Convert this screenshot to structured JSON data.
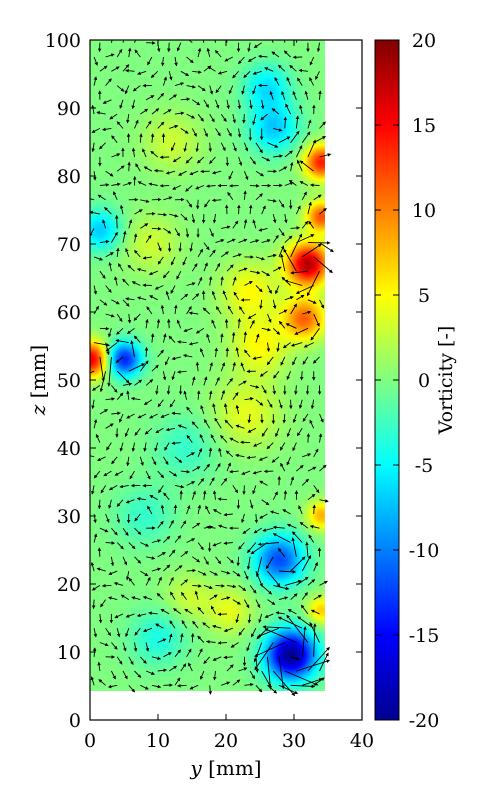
{
  "chart_data": {
    "type": "heatmap",
    "subtype": "vorticity field with velocity vector overlay",
    "xlabel_var": "y",
    "xlabel_unit": "[mm]",
    "ylabel_var": "z",
    "ylabel_unit": "[mm]",
    "xlim": [
      0,
      40
    ],
    "ylim": [
      0,
      100
    ],
    "x_ticks": [
      "0",
      "10",
      "20",
      "30",
      "40"
    ],
    "y_ticks": [
      "0",
      "10",
      "20",
      "30",
      "40",
      "50",
      "60",
      "70",
      "80",
      "90",
      "100"
    ],
    "data_extent": {
      "y": [
        0,
        34.5
      ],
      "z": [
        4.2,
        100
      ]
    },
    "colorbar": {
      "label": "Vorticity [-]",
      "range": [
        -20,
        20
      ],
      "ticks": [
        "20",
        "15",
        "10",
        "5",
        "0",
        "-5",
        "-10",
        "-15",
        "-20"
      ],
      "colormap": "jet"
    },
    "vortices": [
      {
        "y": 29.5,
        "z": 9.5,
        "vorticity": -20,
        "sigma": 2.6
      },
      {
        "y": 27.8,
        "z": 23.5,
        "vorticity": -12,
        "sigma": 2.6
      },
      {
        "y": 5.0,
        "z": 53.0,
        "vorticity": -14,
        "sigma": 1.8
      },
      {
        "y": 0.2,
        "z": 53.0,
        "vorticity": 16,
        "sigma": 1.8
      },
      {
        "y": 32.0,
        "z": 67.0,
        "vorticity": 18,
        "sigma": 2.2
      },
      {
        "y": 34.0,
        "z": 82.0,
        "vorticity": 14,
        "sigma": 1.8
      },
      {
        "y": 34.0,
        "z": 74.0,
        "vorticity": 12,
        "sigma": 1.6
      },
      {
        "y": 31.5,
        "z": 59.0,
        "vorticity": 11,
        "sigma": 2.2
      },
      {
        "y": 27.0,
        "z": 87.0,
        "vorticity": -7,
        "sigma": 2.6
      },
      {
        "y": 26.0,
        "z": 93.0,
        "vorticity": -6,
        "sigma": 2.4
      },
      {
        "y": 25.0,
        "z": 55.0,
        "vorticity": 5,
        "sigma": 3.0
      },
      {
        "y": 23.0,
        "z": 45.0,
        "vorticity": 4,
        "sigma": 3.5
      },
      {
        "y": 23.5,
        "z": 63.0,
        "vorticity": 5,
        "sigma": 3.0
      },
      {
        "y": 1.5,
        "z": 72.0,
        "vorticity": -7,
        "sigma": 2.2
      },
      {
        "y": 34.0,
        "z": 30.0,
        "vorticity": 8,
        "sigma": 1.5
      },
      {
        "y": 34.0,
        "z": 16.0,
        "vorticity": 7,
        "sigma": 1.5
      },
      {
        "y": 20.5,
        "z": 16.0,
        "vorticity": 4,
        "sigma": 2.4
      },
      {
        "y": 10.0,
        "z": 12.0,
        "vorticity": -4,
        "sigma": 2.8
      },
      {
        "y": 14.0,
        "z": 40.0,
        "vorticity": -3,
        "sigma": 3.2
      },
      {
        "y": 9.0,
        "z": 70.0,
        "vorticity": 3,
        "sigma": 3.0
      },
      {
        "y": 12.0,
        "z": 85.0,
        "vorticity": 3,
        "sigma": 3.0
      },
      {
        "y": 14.5,
        "z": 18.0,
        "vorticity": 3,
        "sigma": 2.4
      },
      {
        "y": 8.0,
        "z": 30.0,
        "vorticity": -3,
        "sigma": 3.0
      }
    ],
    "vectors": {
      "spacing_y": 1.7,
      "spacing_z": 2.1
    }
  }
}
